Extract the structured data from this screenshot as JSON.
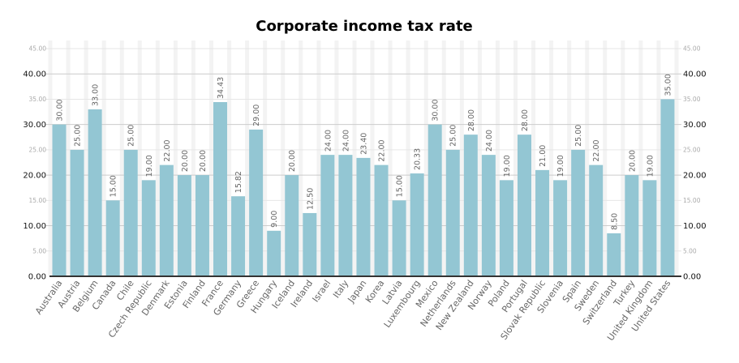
{
  "chart_data": {
    "type": "bar",
    "title": "Corporate income tax rate",
    "xlabel": "",
    "ylabel": "",
    "ylim": [
      0,
      45
    ],
    "grid": true,
    "bar_color": "#93c6d3",
    "major_ticks": [
      "0.00",
      "10.00",
      "20.00",
      "30.00",
      "40.00"
    ],
    "minor_ticks": [
      "5.00",
      "15.00",
      "25.00",
      "35.00",
      "45.00"
    ],
    "categories": [
      "Australia",
      "Austria",
      "Belgium",
      "Canada",
      "Chile",
      "Czech Republic",
      "Denmark",
      "Estonia",
      "Finland",
      "France",
      "Germany",
      "Greece",
      "Hungary",
      "Iceland",
      "Ireland",
      "Israel",
      "Italy",
      "Japan",
      "Korea",
      "Latvia",
      "Luxembourg",
      "Mexico",
      "Netherlands",
      "New Zealand",
      "Norway",
      "Poland",
      "Portugal",
      "Slovak Republic",
      "Slovenia",
      "Spain",
      "Sweden",
      "Switzerland",
      "Turkey",
      "United Kingdom",
      "United States"
    ],
    "values": [
      30.0,
      25.0,
      33.0,
      15.0,
      25.0,
      19.0,
      22.0,
      20.0,
      20.0,
      34.43,
      15.82,
      29.0,
      9.0,
      20.0,
      12.5,
      24.0,
      24.0,
      23.4,
      22.0,
      15.0,
      20.33,
      30.0,
      25.0,
      28.0,
      24.0,
      19.0,
      28.0,
      21.0,
      19.0,
      25.0,
      22.0,
      8.5,
      20.0,
      19.0,
      35.0
    ],
    "data_labels": [
      "30.00",
      "25.00",
      "33.00",
      "15.00",
      "25.00",
      "19.00",
      "22.00",
      "20.00",
      "20.00",
      "34.43",
      "15.82",
      "29.00",
      "9.00",
      "20.00",
      "12.50",
      "24.00",
      "24.00",
      "23.40",
      "22.00",
      "15.00",
      "20.33",
      "30.00",
      "25.00",
      "28.00",
      "24.00",
      "19.00",
      "28.00",
      "21.00",
      "19.00",
      "25.00",
      "22.00",
      "8.50",
      "20.00",
      "19.00",
      "35.00"
    ]
  }
}
